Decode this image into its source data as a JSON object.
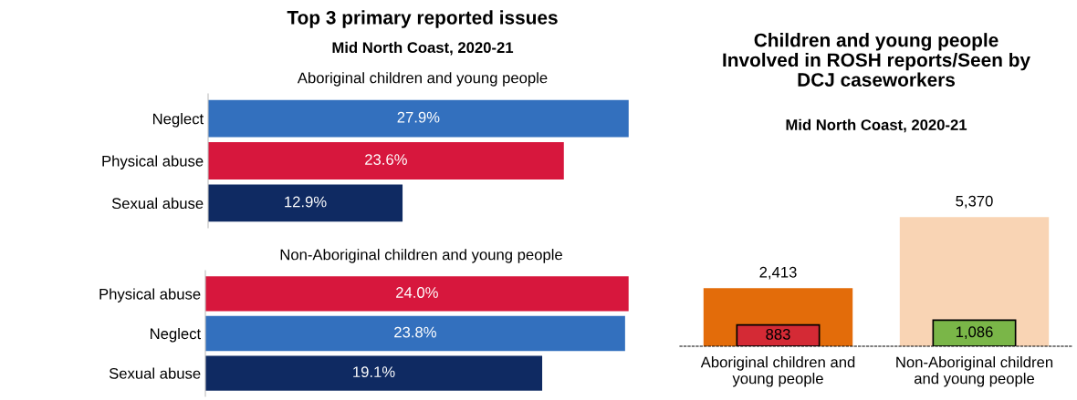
{
  "chart_data": [
    {
      "type": "bar",
      "orientation": "horizontal",
      "title": "Top 3 primary reported issues",
      "subtitle": "Mid North Coast, 2020-21",
      "annotations": [
        "Aboriginal children and young people"
      ],
      "categories": [
        "Neglect",
        "Physical abuse",
        "Sexual abuse"
      ],
      "values": [
        27.9,
        23.6,
        12.9
      ],
      "colors": [
        "#3370be",
        "#d7173d",
        "#0f2a62"
      ],
      "value_labels": [
        "27.9%",
        "23.6%",
        "12.9%"
      ],
      "tick_labels": "y"
    },
    {
      "type": "bar",
      "orientation": "horizontal",
      "annotations": [
        "Non-Aboriginal children and young people"
      ],
      "categories": [
        "Physical abuse",
        "Neglect",
        "Sexual abuse"
      ],
      "values": [
        24.0,
        23.8,
        19.1
      ],
      "colors": [
        "#d7173d",
        "#3370be",
        "#0f2a62"
      ],
      "value_labels": [
        "24.0%",
        "23.8%",
        "19.1%"
      ],
      "tick_labels": "y"
    },
    {
      "type": "bar",
      "title": "Children and young people\nInvolved in ROSH reports/Seen by\nDCJ caseworkers",
      "subtitle": "Mid North Coast, 2020-21",
      "categories": [
        "Aboriginal children and\nyoung people",
        "Non-Aboriginal children\nand young people"
      ],
      "series": [
        {
          "colors": [
            "#e36c0a",
            "#f9d4b4"
          ],
          "values": [
            2413,
            5370
          ],
          "value_labels": [
            "2,413",
            "5,370"
          ]
        },
        {
          "colors": [
            "#d42a35",
            "#7ab648"
          ],
          "values": [
            883,
            1086
          ],
          "value_labels": [
            "883",
            "1,086"
          ]
        }
      ],
      "tick_labels": "x"
    }
  ]
}
